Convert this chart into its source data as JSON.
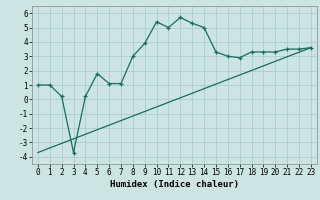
{
  "title": "",
  "xlabel": "Humidex (Indice chaleur)",
  "ylabel": "",
  "background_color": "#cce5e3",
  "grid_color": "#aacfcd",
  "line_color": "#1a6b60",
  "xlim": [
    -0.5,
    23.5
  ],
  "ylim": [
    -4.5,
    6.5
  ],
  "yticks": [
    -4,
    -3,
    -2,
    -1,
    0,
    1,
    2,
    3,
    4,
    5,
    6
  ],
  "xticks": [
    0,
    1,
    2,
    3,
    4,
    5,
    6,
    7,
    8,
    9,
    10,
    11,
    12,
    13,
    14,
    15,
    16,
    17,
    18,
    19,
    20,
    21,
    22,
    23
  ],
  "line1_x": [
    0,
    1,
    2,
    3,
    4,
    5,
    6,
    7,
    8,
    9,
    10,
    11,
    12,
    13,
    14,
    15,
    16,
    17,
    18,
    19,
    20,
    21,
    22,
    23
  ],
  "line1_y": [
    1.0,
    1.0,
    0.2,
    -3.7,
    0.2,
    1.8,
    1.1,
    1.1,
    3.0,
    3.9,
    5.4,
    5.0,
    5.7,
    5.3,
    5.0,
    3.3,
    3.0,
    2.9,
    3.3,
    3.3,
    3.3,
    3.5,
    3.5,
    3.6
  ],
  "line2_x": [
    0,
    23
  ],
  "line2_y": [
    -3.7,
    3.6
  ],
  "tick_fontsize": 5.5,
  "xlabel_fontsize": 6.5
}
